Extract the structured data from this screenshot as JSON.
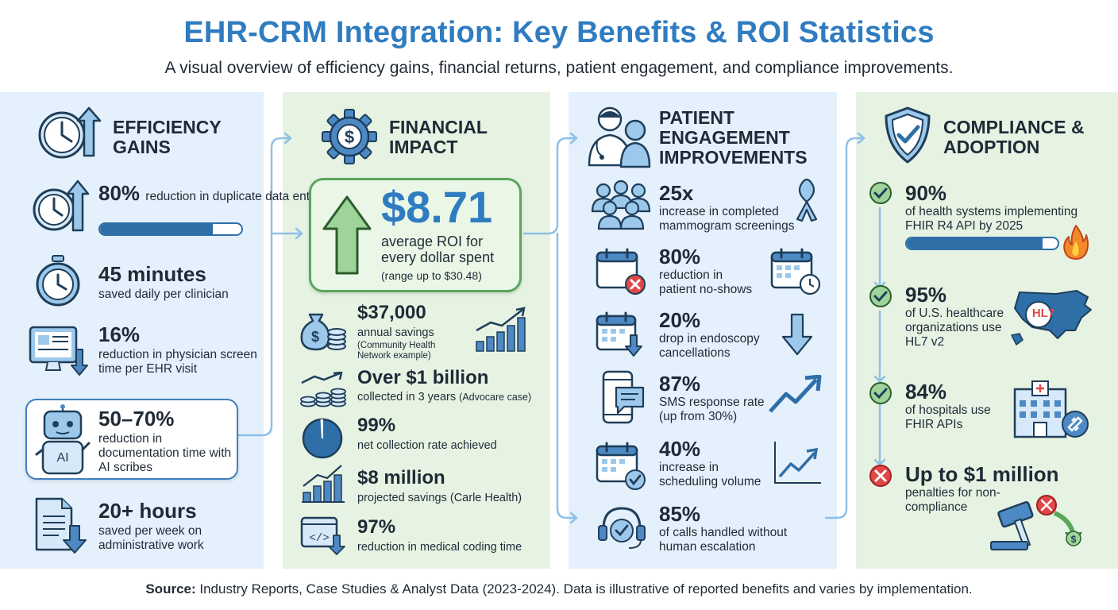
{
  "header": {
    "title": "EHR-CRM Integration: Key Benefits & ROI Statistics",
    "subtitle": "A visual overview of efficiency gains, financial returns, patient engagement, and compliance improvements."
  },
  "efficiency": {
    "title": "EFFICIENCY GAINS",
    "items": [
      {
        "stat": "80%",
        "desc": "reduction in duplicate data entry",
        "progress": 0.8
      },
      {
        "stat": "45 minutes",
        "desc": "saved daily per clinician"
      },
      {
        "stat": "16%",
        "desc": "reduction in physician screen time per EHR visit"
      },
      {
        "stat": "50–70%",
        "desc": "reduction in documentation time with AI scribes",
        "icon_label": "AI"
      },
      {
        "stat": "20+ hours",
        "desc": "saved per week on administrative work"
      }
    ]
  },
  "financial": {
    "title": "FINANCIAL IMPACT",
    "highlight": {
      "value": "$8.71",
      "desc": "average ROI for every dollar spent",
      "range": "(range up to $30.48)"
    },
    "items": [
      {
        "stat": "$37,000",
        "desc": "annual savings",
        "note": "(Community Health Network example)"
      },
      {
        "stat": "Over $1 billion",
        "desc": "collected in 3 years",
        "note": "(Advocare case)"
      },
      {
        "stat": "99%",
        "desc": "net collection rate achieved",
        "progress": 0.99
      },
      {
        "stat": "$8 million",
        "desc": "projected savings (Carle Health)"
      },
      {
        "stat": "97%",
        "desc": "reduction in medical coding time"
      }
    ]
  },
  "patient": {
    "title": "PATIENT ENGAGEMENT IMPROVEMENTS",
    "items": [
      {
        "stat": "25x",
        "desc": "increase in completed mammogram screenings"
      },
      {
        "stat": "80%",
        "desc": "reduction in patient no-shows"
      },
      {
        "stat": "20%",
        "desc": "drop in endoscopy cancellations"
      },
      {
        "stat": "87%",
        "desc": "SMS response rate (up from 30%)"
      },
      {
        "stat": "40%",
        "desc": "increase in scheduling volume"
      },
      {
        "stat": "85%",
        "desc": "of calls handled without human escalation"
      }
    ]
  },
  "compliance": {
    "title": "COMPLIANCE & ADOPTION",
    "items": [
      {
        "stat": "90%",
        "desc": "of health systems implementing FHIR R4 API by 2025",
        "progress": 0.9
      },
      {
        "stat": "95%",
        "desc": "of U.S. healthcare organizations use HL7 v2",
        "map_label": "HL7"
      },
      {
        "stat": "84%",
        "desc": "of hospitals use FHIR APIs"
      },
      {
        "stat": "Up to $1 million",
        "desc": "penalties for non-compliance"
      }
    ]
  },
  "footer": {
    "source_label": "Source:",
    "source_text": "Industry Reports, Case Studies & Analyst Data (2023-2024). Data is illustrative of reported benefits and varies by implementation."
  },
  "colors": {
    "accent": "#2f7cc0",
    "dark_blue": "#2f6fa8",
    "green": "#5aa65a",
    "red": "#e04848"
  }
}
